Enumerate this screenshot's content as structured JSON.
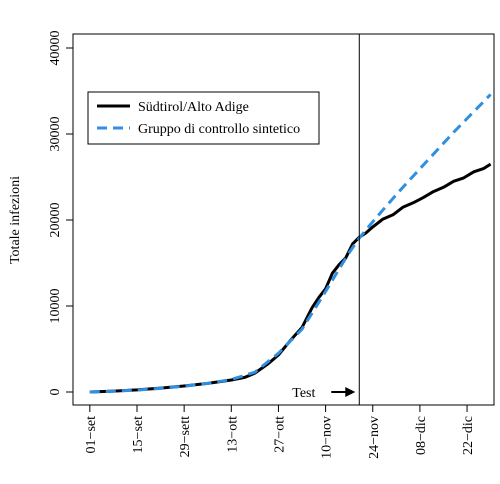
{
  "chart_data": {
    "type": "line",
    "title": "",
    "xlabel": "",
    "ylabel": "Totale infezioni",
    "ylim": [
      0,
      40000
    ],
    "xlim_day": [
      -5,
      120
    ],
    "y_ticks": [
      0,
      10000,
      20000,
      30000,
      40000
    ],
    "y_tick_labels": [
      "0",
      "10000",
      "20000",
      "30000",
      "40000"
    ],
    "x_ticks": [
      {
        "label": "01−set",
        "date": "2020-09-01"
      },
      {
        "label": "15−set",
        "date": "2020-09-15"
      },
      {
        "label": "29−sett",
        "date": "2020-09-29"
      },
      {
        "label": "13−ott",
        "date": "2020-10-13"
      },
      {
        "label": "27−ott",
        "date": "2020-10-27"
      },
      {
        "label": "10−nov",
        "date": "2020-11-10"
      },
      {
        "label": "24−nov",
        "date": "2020-11-24"
      },
      {
        "label": "08−dic",
        "date": "2020-12-08"
      },
      {
        "label": "22−dic",
        "date": "2020-12-22"
      }
    ],
    "annotation": {
      "text": "Test",
      "date": "2020-11-20"
    },
    "legend": {
      "position": "top-left"
    },
    "series": [
      {
        "name": "Südtirol/Alto Adige",
        "color": "#000000",
        "dash": "solid",
        "points": [
          [
            "2020-09-01",
            0
          ],
          [
            "2020-09-08",
            100
          ],
          [
            "2020-09-15",
            250
          ],
          [
            "2020-09-22",
            450
          ],
          [
            "2020-09-29",
            700
          ],
          [
            "2020-10-06",
            1000
          ],
          [
            "2020-10-13",
            1400
          ],
          [
            "2020-10-17",
            1700
          ],
          [
            "2020-10-20",
            2200
          ],
          [
            "2020-10-24",
            3300
          ],
          [
            "2020-10-27",
            4300
          ],
          [
            "2020-10-31",
            6200
          ],
          [
            "2020-11-03",
            7500
          ],
          [
            "2020-11-06",
            9800
          ],
          [
            "2020-11-08",
            11000
          ],
          [
            "2020-11-10",
            12000
          ],
          [
            "2020-11-12",
            13800
          ],
          [
            "2020-11-14",
            14800
          ],
          [
            "2020-11-16",
            15600
          ],
          [
            "2020-11-18",
            17200
          ],
          [
            "2020-11-20",
            18000
          ],
          [
            "2020-11-22",
            18500
          ],
          [
            "2020-11-24",
            19200
          ],
          [
            "2020-11-27",
            20100
          ],
          [
            "2020-11-30",
            20600
          ],
          [
            "2020-12-03",
            21500
          ],
          [
            "2020-12-06",
            22000
          ],
          [
            "2020-12-09",
            22600
          ],
          [
            "2020-12-12",
            23300
          ],
          [
            "2020-12-15",
            23800
          ],
          [
            "2020-12-18",
            24500
          ],
          [
            "2020-12-21",
            24900
          ],
          [
            "2020-12-24",
            25600
          ],
          [
            "2020-12-27",
            26000
          ],
          [
            "2020-12-29",
            26500
          ]
        ]
      },
      {
        "name": "Gruppo di controllo sintetico",
        "color": "#2f8fe0",
        "dash": "dashed",
        "points": [
          [
            "2020-09-01",
            0
          ],
          [
            "2020-09-08",
            90
          ],
          [
            "2020-09-15",
            230
          ],
          [
            "2020-09-22",
            420
          ],
          [
            "2020-09-29",
            680
          ],
          [
            "2020-10-06",
            1000
          ],
          [
            "2020-10-13",
            1450
          ],
          [
            "2020-10-20",
            2300
          ],
          [
            "2020-10-27",
            4500
          ],
          [
            "2020-11-03",
            7300
          ],
          [
            "2020-11-10",
            11700
          ],
          [
            "2020-11-14",
            14300
          ],
          [
            "2020-11-17",
            16200
          ],
          [
            "2020-11-20",
            17900
          ],
          [
            "2020-11-24",
            19800
          ],
          [
            "2020-11-28",
            21600
          ],
          [
            "2020-12-02",
            23400
          ],
          [
            "2020-12-06",
            25100
          ],
          [
            "2020-12-10",
            26800
          ],
          [
            "2020-12-14",
            28500
          ],
          [
            "2020-12-18",
            30200
          ],
          [
            "2020-12-22",
            31800
          ],
          [
            "2020-12-26",
            33400
          ],
          [
            "2020-12-29",
            34600
          ]
        ]
      }
    ]
  }
}
